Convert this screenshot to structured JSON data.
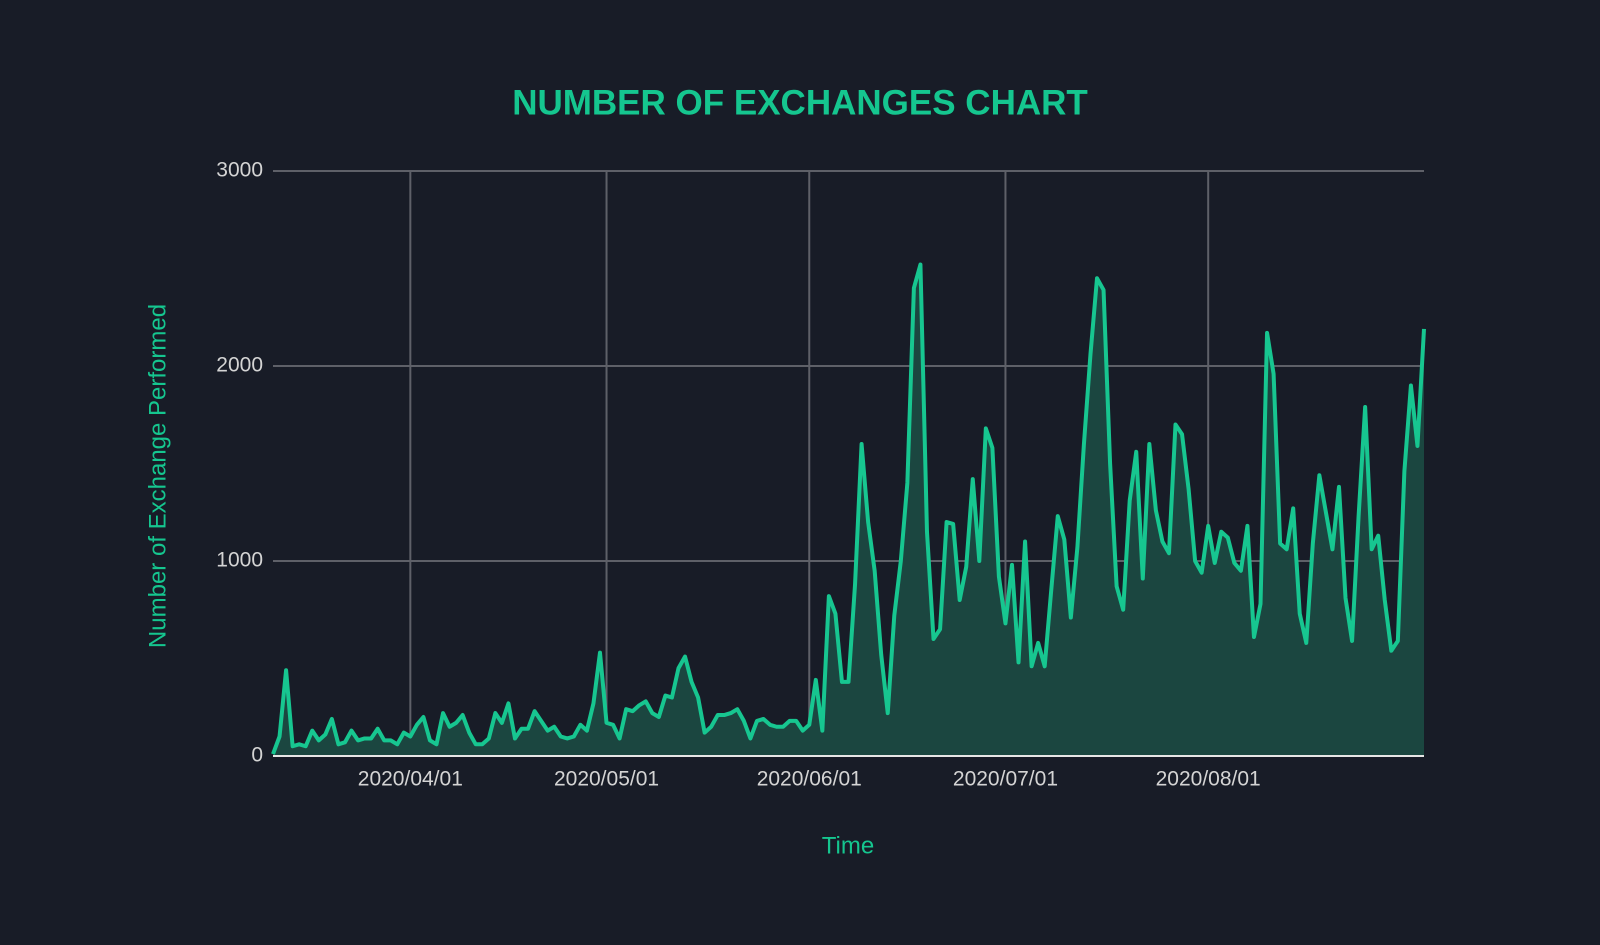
{
  "chart_data": {
    "type": "line",
    "title": "NUMBER OF EXCHANGES CHART",
    "x_label": "Time",
    "y_label": "Number of Exchange Performed",
    "color": "#17c690",
    "fill_color": "#1b4640",
    "grid": true,
    "xlim": [
      "2020/03/11",
      "2020/09/03"
    ],
    "ylim": [
      0,
      3000
    ],
    "yticks": [
      0,
      1000,
      2000,
      3000
    ],
    "xticks": [
      "2020/04/01",
      "2020/05/01",
      "2020/06/01",
      "2020/07/01",
      "2020/08/01"
    ],
    "x": [
      "2020/03/11",
      "2020/03/12",
      "2020/03/13",
      "2020/03/14",
      "2020/03/15",
      "2020/03/16",
      "2020/03/17",
      "2020/03/18",
      "2020/03/19",
      "2020/03/20",
      "2020/03/21",
      "2020/03/22",
      "2020/03/23",
      "2020/03/24",
      "2020/03/25",
      "2020/03/26",
      "2020/03/27",
      "2020/03/28",
      "2020/03/29",
      "2020/03/30",
      "2020/03/31",
      "2020/04/01",
      "2020/04/02",
      "2020/04/03",
      "2020/04/04",
      "2020/04/05",
      "2020/04/06",
      "2020/04/07",
      "2020/04/08",
      "2020/04/09",
      "2020/04/10",
      "2020/04/11",
      "2020/04/12",
      "2020/04/13",
      "2020/04/14",
      "2020/04/15",
      "2020/04/16",
      "2020/04/17",
      "2020/04/18",
      "2020/04/19",
      "2020/04/20",
      "2020/04/21",
      "2020/04/22",
      "2020/04/23",
      "2020/04/24",
      "2020/04/25",
      "2020/04/26",
      "2020/04/27",
      "2020/04/28",
      "2020/04/29",
      "2020/04/30",
      "2020/05/01",
      "2020/05/02",
      "2020/05/03",
      "2020/05/04",
      "2020/05/05",
      "2020/05/06",
      "2020/05/07",
      "2020/05/08",
      "2020/05/09",
      "2020/05/10",
      "2020/05/11",
      "2020/05/12",
      "2020/05/13",
      "2020/05/14",
      "2020/05/15",
      "2020/05/16",
      "2020/05/17",
      "2020/05/18",
      "2020/05/19",
      "2020/05/20",
      "2020/05/21",
      "2020/05/22",
      "2020/05/23",
      "2020/05/24",
      "2020/05/25",
      "2020/05/26",
      "2020/05/27",
      "2020/05/28",
      "2020/05/29",
      "2020/05/30",
      "2020/05/31",
      "2020/06/01",
      "2020/06/02",
      "2020/06/03",
      "2020/06/04",
      "2020/06/05",
      "2020/06/06",
      "2020/06/07",
      "2020/06/08",
      "2020/06/09",
      "2020/06/10",
      "2020/06/11",
      "2020/06/12",
      "2020/06/13",
      "2020/06/14",
      "2020/06/15",
      "2020/06/16",
      "2020/06/17",
      "2020/06/18",
      "2020/06/19",
      "2020/06/20",
      "2020/06/21",
      "2020/06/22",
      "2020/06/23",
      "2020/06/24",
      "2020/06/25",
      "2020/06/26",
      "2020/06/27",
      "2020/06/28",
      "2020/06/29",
      "2020/06/30",
      "2020/07/01",
      "2020/07/02",
      "2020/07/03",
      "2020/07/04",
      "2020/07/05",
      "2020/07/06",
      "2020/07/07",
      "2020/07/08",
      "2020/07/09",
      "2020/07/10",
      "2020/07/11",
      "2020/07/12",
      "2020/07/13",
      "2020/07/14",
      "2020/07/15",
      "2020/07/16",
      "2020/07/17",
      "2020/07/18",
      "2020/07/19",
      "2020/07/20",
      "2020/07/21",
      "2020/07/22",
      "2020/07/23",
      "2020/07/24",
      "2020/07/25",
      "2020/07/26",
      "2020/07/27",
      "2020/07/28",
      "2020/07/29",
      "2020/07/30",
      "2020/07/31",
      "2020/08/01",
      "2020/08/02",
      "2020/08/03",
      "2020/08/04",
      "2020/08/05",
      "2020/08/06",
      "2020/08/07",
      "2020/08/08",
      "2020/08/09",
      "2020/08/10",
      "2020/08/11",
      "2020/08/12",
      "2020/08/13",
      "2020/08/14",
      "2020/08/15",
      "2020/08/16",
      "2020/08/17",
      "2020/08/18",
      "2020/08/19",
      "2020/08/20",
      "2020/08/21",
      "2020/08/22",
      "2020/08/23",
      "2020/08/24",
      "2020/08/25",
      "2020/08/26",
      "2020/08/27",
      "2020/08/28",
      "2020/08/29",
      "2020/08/30",
      "2020/08/31",
      "2020/09/01",
      "2020/09/02",
      "2020/09/03"
    ],
    "values": [
      10,
      100,
      440,
      50,
      60,
      50,
      130,
      80,
      110,
      190,
      60,
      70,
      130,
      80,
      90,
      90,
      140,
      80,
      80,
      60,
      120,
      100,
      160,
      200,
      80,
      60,
      220,
      150,
      170,
      210,
      120,
      60,
      60,
      90,
      220,
      170,
      270,
      90,
      140,
      140,
      230,
      180,
      130,
      150,
      100,
      90,
      100,
      160,
      130,
      270,
      530,
      170,
      160,
      90,
      240,
      230,
      260,
      280,
      220,
      200,
      310,
      300,
      450,
      510,
      380,
      300,
      120,
      150,
      210,
      210,
      220,
      240,
      180,
      90,
      180,
      190,
      160,
      150,
      150,
      180,
      180,
      130,
      160,
      390,
      130,
      820,
      730,
      380,
      380,
      880,
      1600,
      1200,
      950,
      520,
      220,
      720,
      1000,
      1400,
      2400,
      2520,
      1150,
      600,
      650,
      1200,
      1190,
      800,
      970,
      1420,
      1000,
      1680,
      1580,
      920,
      680,
      980,
      480,
      1100,
      460,
      580,
      460,
      850,
      1230,
      1110,
      710,
      1070,
      1600,
      2060,
      2450,
      2390,
      1500,
      870,
      750,
      1310,
      1560,
      910,
      1600,
      1260,
      1100,
      1040,
      1700,
      1650,
      1370,
      1000,
      940,
      1180,
      990,
      1150,
      1120,
      990,
      950,
      1180,
      610,
      780,
      2170,
      1960,
      1090,
      1060,
      1270,
      730,
      580,
      1090,
      1440,
      1250,
      1060,
      1380,
      810,
      590,
      1230,
      1790,
      1060,
      1130,
      800,
      540,
      590,
      1460,
      1900,
      1590,
      2190
    ]
  }
}
